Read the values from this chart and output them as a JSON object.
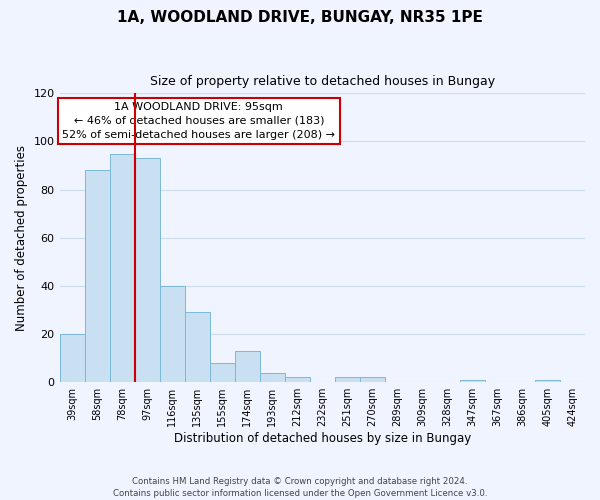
{
  "title": "1A, WOODLAND DRIVE, BUNGAY, NR35 1PE",
  "subtitle": "Size of property relative to detached houses in Bungay",
  "xlabel": "Distribution of detached houses by size in Bungay",
  "ylabel": "Number of detached properties",
  "bar_labels": [
    "39sqm",
    "58sqm",
    "78sqm",
    "97sqm",
    "116sqm",
    "135sqm",
    "155sqm",
    "174sqm",
    "193sqm",
    "212sqm",
    "232sqm",
    "251sqm",
    "270sqm",
    "289sqm",
    "309sqm",
    "328sqm",
    "347sqm",
    "367sqm",
    "386sqm",
    "405sqm",
    "424sqm"
  ],
  "bar_values": [
    20,
    88,
    95,
    93,
    40,
    29,
    8,
    13,
    4,
    2,
    0,
    2,
    2,
    0,
    0,
    0,
    1,
    0,
    0,
    1,
    0
  ],
  "bar_color": "#c9dff2",
  "bar_edge_color": "#7ab8d9",
  "vline_x": 2.5,
  "vline_color": "#cc0000",
  "ylim": [
    0,
    120
  ],
  "yticks": [
    0,
    20,
    40,
    60,
    80,
    100,
    120
  ],
  "annotation_title": "1A WOODLAND DRIVE: 95sqm",
  "annotation_line1": "← 46% of detached houses are smaller (183)",
  "annotation_line2": "52% of semi-detached houses are larger (208) →",
  "annotation_box_facecolor": "#ffffff",
  "annotation_box_edgecolor": "#cc0000",
  "footer_line1": "Contains HM Land Registry data © Crown copyright and database right 2024.",
  "footer_line2": "Contains public sector information licensed under the Open Government Licence v3.0.",
  "grid_color": "#ccddf0",
  "background_color": "#f0f4ff"
}
